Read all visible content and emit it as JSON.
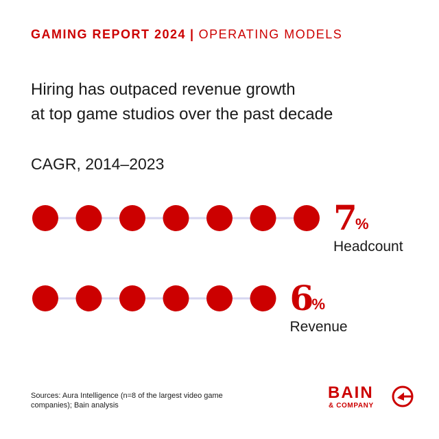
{
  "header": {
    "report": "GAMING REPORT 2024",
    "separator": "|",
    "section": "OPERATING MODELS"
  },
  "headline": {
    "line1": "Hiring has outpaced revenue growth",
    "line2": "at top game studios over the past decade"
  },
  "chart_data": {
    "type": "dot-plot",
    "subtitle": "CAGR, 2014–2023",
    "unit": "%",
    "series": [
      {
        "name": "Headcount",
        "value": 7
      },
      {
        "name": "Revenue",
        "value": 6
      }
    ],
    "colors": {
      "dot": "#cc0000",
      "connector": "#d6d6f0",
      "value": "#cc0000"
    }
  },
  "footer": {
    "source": "Sources: Aura Intelligence (n=8 of the largest video game companies); Bain analysis",
    "logo_word": "BAIN",
    "logo_sub": "& COMPANY",
    "logo_icon": "bain-target-icon"
  }
}
